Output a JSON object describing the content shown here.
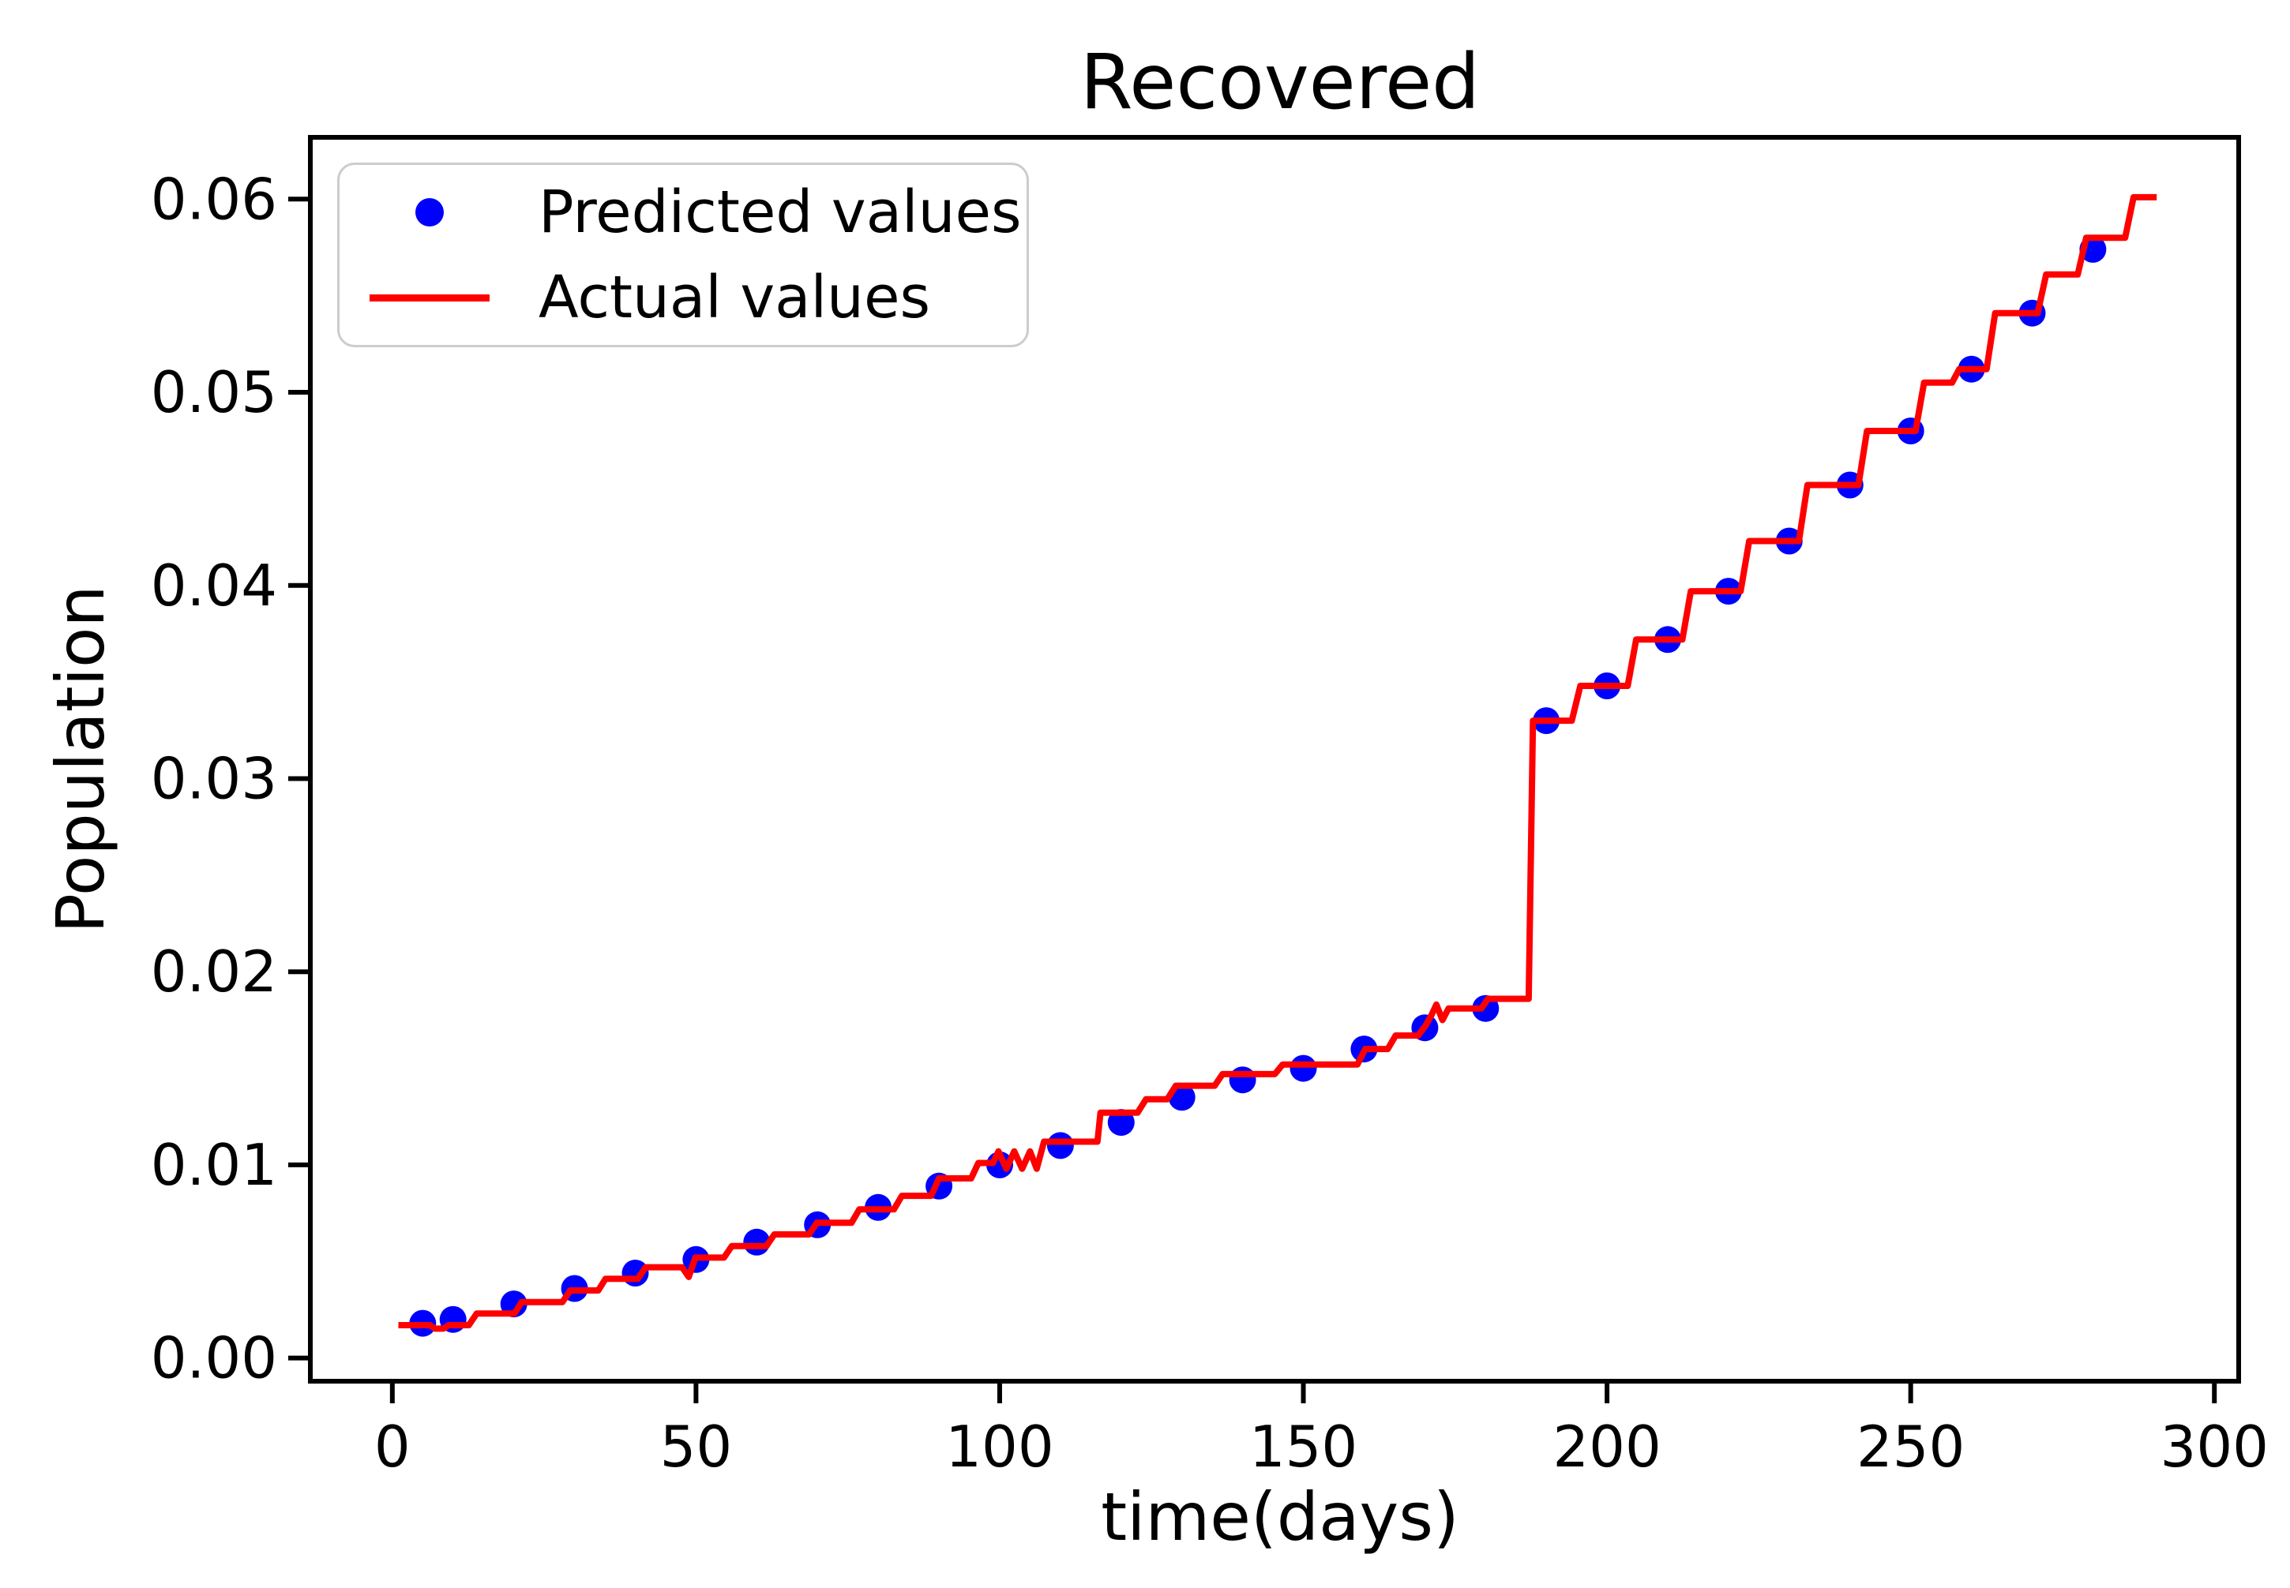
{
  "figure": {
    "title": "Recovered",
    "xlabel": "time(days)",
    "ylabel": "Population"
  },
  "colors": {
    "predicted": "#0000ff",
    "actual": "#ff0000",
    "axis": "#000000",
    "legend_border": "#cccccc",
    "background": "#ffffff"
  },
  "chart_data": {
    "type": "line",
    "title": "Recovered",
    "xlabel": "time(days)",
    "ylabel": "Population",
    "grid": false,
    "xlim": [
      -13.5,
      304
    ],
    "ylim": [
      -0.0012,
      0.0632
    ],
    "x_ticks": [
      0,
      50,
      100,
      150,
      200,
      250,
      300
    ],
    "y_ticks": [
      0.0,
      0.01,
      0.02,
      0.03,
      0.04,
      0.05,
      0.06
    ],
    "y_tick_labels": [
      "0.00",
      "0.01",
      "0.02",
      "0.03",
      "0.04",
      "0.05",
      "0.06"
    ],
    "legend": {
      "position": "upper left",
      "entries": [
        "Predicted values",
        "Actual values"
      ]
    },
    "series": [
      {
        "name": "Predicted values",
        "type": "scatter",
        "color": "#0000ff",
        "x": [
          5,
          10,
          20,
          30,
          40,
          50,
          60,
          70,
          80,
          90,
          100,
          110,
          120,
          130,
          140,
          150,
          160,
          170,
          180,
          190,
          200,
          210,
          220,
          230,
          240,
          250,
          260,
          270,
          280
        ],
        "y": [
          0.0018,
          0.002,
          0.0028,
          0.0036,
          0.0044,
          0.0051,
          0.006,
          0.0069,
          0.0078,
          0.0089,
          0.01,
          0.011,
          0.0122,
          0.0135,
          0.0144,
          0.015,
          0.016,
          0.0171,
          0.0181,
          0.033,
          0.0348,
          0.0372,
          0.0397,
          0.0423,
          0.0452,
          0.048,
          0.0512,
          0.0541,
          0.0574
        ]
      },
      {
        "name": "Actual values",
        "type": "line",
        "color": "#ff0000",
        "points": [
          [
            1,
            0.0017
          ],
          [
            6.2,
            0.0017
          ],
          [
            7,
            0.00152
          ],
          [
            8.4,
            0.00152
          ],
          [
            9.3,
            0.0017
          ],
          [
            12.6,
            0.0017
          ],
          [
            13.9,
            0.0023
          ],
          [
            20.1,
            0.0023
          ],
          [
            21.3,
            0.0029
          ],
          [
            28,
            0.0029
          ],
          [
            29.3,
            0.0035
          ],
          [
            33.9,
            0.0035
          ],
          [
            35.1,
            0.0041
          ],
          [
            40.4,
            0.0041
          ],
          [
            41.7,
            0.0047
          ],
          [
            47.7,
            0.0047
          ],
          [
            48.8,
            0.0042
          ],
          [
            49.9,
            0.0052
          ],
          [
            54.6,
            0.0052
          ],
          [
            55.9,
            0.0058
          ],
          [
            61.6,
            0.0058
          ],
          [
            62.9,
            0.0064
          ],
          [
            68.6,
            0.0064
          ],
          [
            69.9,
            0.007
          ],
          [
            75.6,
            0.007
          ],
          [
            76.9,
            0.0077
          ],
          [
            82.6,
            0.0077
          ],
          [
            83.9,
            0.0084
          ],
          [
            88.7,
            0.0084
          ],
          [
            90,
            0.0093
          ],
          [
            95.3,
            0.0093
          ],
          [
            96.5,
            0.0101
          ],
          [
            98.9,
            0.0101
          ],
          [
            99.8,
            0.0107
          ],
          [
            101.1,
            0.0098
          ],
          [
            102.4,
            0.0107
          ],
          [
            103.7,
            0.0098
          ],
          [
            105,
            0.0107
          ],
          [
            106.1,
            0.0098
          ],
          [
            107.3,
            0.0112
          ],
          [
            116.1,
            0.0112
          ],
          [
            116.6,
            0.0127
          ],
          [
            122.7,
            0.0127
          ],
          [
            124.1,
            0.0134
          ],
          [
            127.6,
            0.0134
          ],
          [
            129,
            0.0141
          ],
          [
            135.4,
            0.0141
          ],
          [
            136.7,
            0.0147
          ],
          [
            145.3,
            0.0147
          ],
          [
            146.6,
            0.0152
          ],
          [
            158.9,
            0.0152
          ],
          [
            160.2,
            0.016
          ],
          [
            163.9,
            0.016
          ],
          [
            165.2,
            0.0167
          ],
          [
            168.9,
            0.0167
          ],
          [
            170.1,
            0.0172
          ],
          [
            171,
            0.0177
          ],
          [
            171.9,
            0.0183
          ],
          [
            172.9,
            0.0175
          ],
          [
            173.9,
            0.0181
          ],
          [
            179.3,
            0.0181
          ],
          [
            180.4,
            0.0186
          ],
          [
            187.1,
            0.0186
          ],
          [
            187.8,
            0.033
          ],
          [
            194.2,
            0.033
          ],
          [
            195.6,
            0.0348
          ],
          [
            203.4,
            0.0348
          ],
          [
            204.8,
            0.0372
          ],
          [
            212.4,
            0.0372
          ],
          [
            213.8,
            0.0397
          ],
          [
            222,
            0.0397
          ],
          [
            223.4,
            0.0423
          ],
          [
            231.6,
            0.0423
          ],
          [
            233,
            0.0452
          ],
          [
            241.4,
            0.0452
          ],
          [
            242.8,
            0.048
          ],
          [
            250.8,
            0.048
          ],
          [
            252.2,
            0.0505
          ],
          [
            256.8,
            0.0505
          ],
          [
            258,
            0.0512
          ],
          [
            262.5,
            0.0512
          ],
          [
            263.9,
            0.0541
          ],
          [
            270.9,
            0.0541
          ],
          [
            272.3,
            0.0561
          ],
          [
            277.5,
            0.0561
          ],
          [
            278.9,
            0.058
          ],
          [
            285.3,
            0.058
          ],
          [
            286.7,
            0.0601
          ],
          [
            290.5,
            0.0601
          ]
        ]
      }
    ]
  }
}
